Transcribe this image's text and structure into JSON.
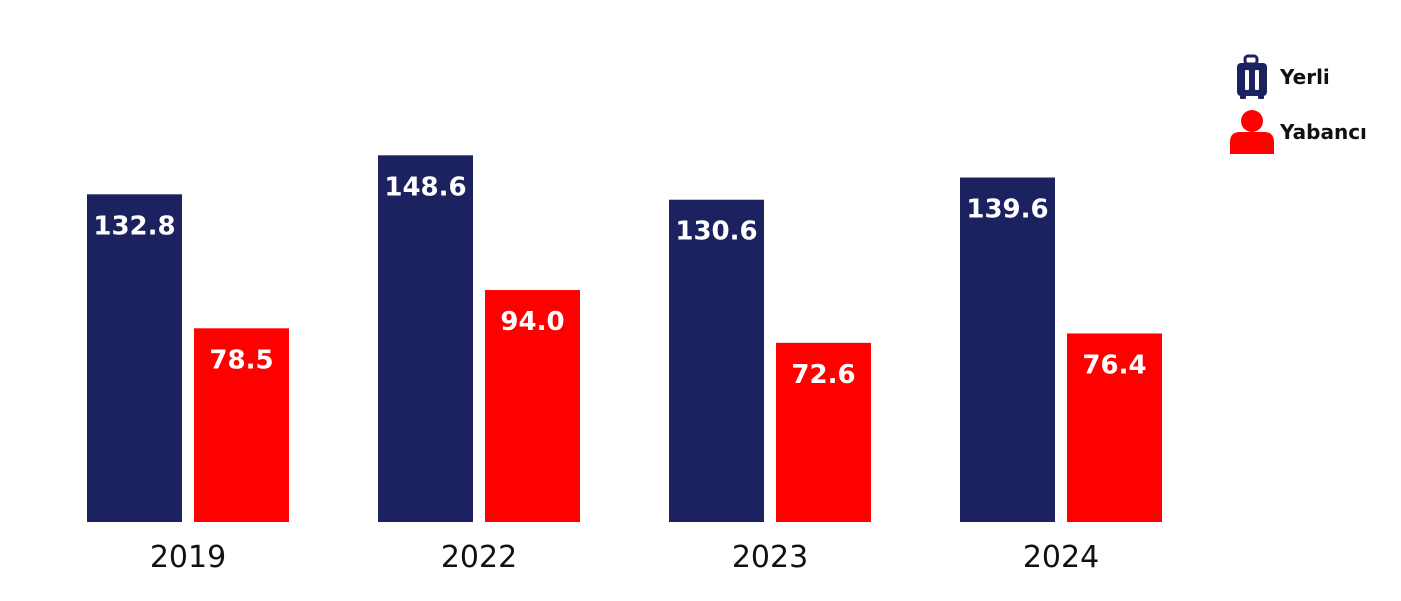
{
  "chart_data": {
    "type": "bar",
    "categories": [
      "2019",
      "2022",
      "2023",
      "2024"
    ],
    "series": [
      {
        "name": "Yerli",
        "color": "#1c2260",
        "icon": "suitcase-icon",
        "values": [
          132.8,
          148.6,
          130.6,
          139.6
        ]
      },
      {
        "name": "Yabancı",
        "color": "#ff0000",
        "icon": "person-icon",
        "values": [
          78.5,
          94.0,
          72.6,
          76.4
        ]
      }
    ],
    "value_labels": {
      "Yerli": [
        "132.8",
        "148.6",
        "130.6",
        "139.6"
      ],
      "Yabancı": [
        "78.5",
        "94.0",
        "72.6",
        "76.4"
      ]
    },
    "ylim": [
      0,
      160
    ],
    "grid": false,
    "axes_visible": false,
    "legend_position": "top-right"
  }
}
